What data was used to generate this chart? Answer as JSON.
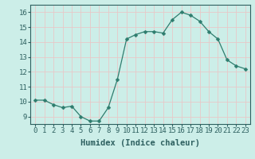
{
  "x": [
    0,
    1,
    2,
    3,
    4,
    5,
    6,
    7,
    8,
    9,
    10,
    11,
    12,
    13,
    14,
    15,
    16,
    17,
    18,
    19,
    20,
    21,
    22,
    23
  ],
  "y": [
    10.1,
    10.1,
    9.8,
    9.6,
    9.7,
    9.0,
    8.7,
    8.7,
    9.6,
    11.5,
    14.2,
    14.5,
    14.7,
    14.7,
    14.6,
    15.5,
    16.0,
    15.8,
    15.4,
    14.7,
    14.2,
    12.8,
    12.4,
    12.2
  ],
  "line_color": "#2e7d6e",
  "marker": "D",
  "marker_size": 2.5,
  "bg_color": "#cceee8",
  "grid_color": "#e8c8c8",
  "xlabel": "Humidex (Indice chaleur)",
  "ylabel_ticks": [
    9,
    10,
    11,
    12,
    13,
    14,
    15,
    16
  ],
  "ylim": [
    8.5,
    16.5
  ],
  "xlim": [
    -0.5,
    23.5
  ],
  "axis_fontsize": 6.5,
  "label_fontsize": 7.5,
  "tick_color": "#2e6060",
  "spine_color": "#2e6060"
}
